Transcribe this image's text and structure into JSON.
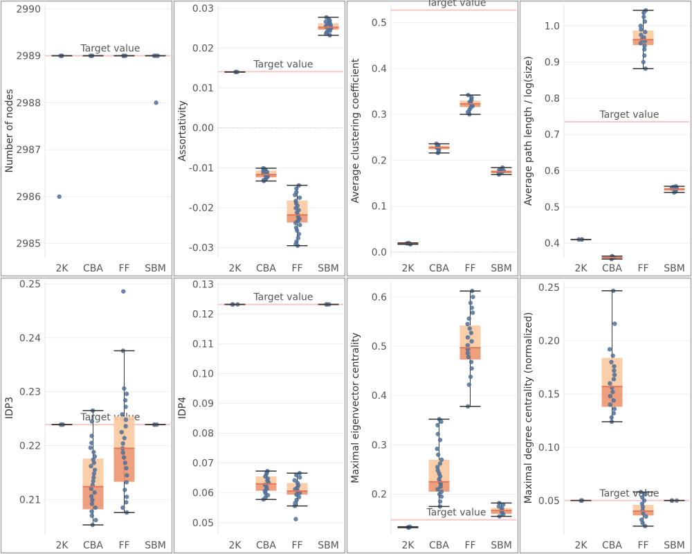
{
  "colors": {
    "point": "#4e6f96",
    "box_upper": "#f9c9a0",
    "box_lower": "#eb8f67",
    "median": "#e0775a",
    "whisker": "#333333",
    "target_line": "#f7c7c7",
    "grid": "#eeeeee",
    "frame": "#9a9a9a"
  },
  "chart_data": [
    {
      "type": "box",
      "ylabel": "Number of nodes",
      "categories": [
        "2K",
        "CBA",
        "FF",
        "SBM"
      ],
      "ylim": [
        2984.7,
        2990.1
      ],
      "yticks": [
        "2985",
        "2986",
        "2987",
        "2988",
        "2989",
        "2990"
      ],
      "target": {
        "label": "Target value",
        "value": 2989
      },
      "boxes": [
        {
          "category": "2K",
          "min": 2989,
          "q1": 2989,
          "median": 2989,
          "q3": 2989,
          "max": 2989,
          "points": [
            2989,
            2989,
            2989,
            2986
          ]
        },
        {
          "category": "CBA",
          "min": 2989,
          "q1": 2989,
          "median": 2989,
          "q3": 2989,
          "max": 2989,
          "points": [
            2989,
            2989,
            2989
          ]
        },
        {
          "category": "FF",
          "min": 2989,
          "q1": 2989,
          "median": 2989,
          "q3": 2989,
          "max": 2989,
          "points": [
            2989,
            2989,
            2989
          ]
        },
        {
          "category": "SBM",
          "min": 2989,
          "q1": 2989,
          "median": 2989,
          "q3": 2989,
          "max": 2989,
          "points": [
            2989,
            2989,
            2989,
            2988
          ]
        }
      ]
    },
    {
      "type": "box",
      "ylabel": "Assortativity",
      "categories": [
        "2K",
        "CBA",
        "FF",
        "SBM"
      ],
      "ylim": [
        -0.0325,
        0.031
      ],
      "yticks": [
        "-0.03",
        "-0.02",
        "-0.01",
        "0.00",
        "0.01",
        "0.02",
        "0.03"
      ],
      "zero_line": 0,
      "target": {
        "label": "Target value",
        "value": 0.0141
      },
      "boxes": [
        {
          "category": "2K",
          "min": 0.014,
          "q1": 0.014,
          "median": 0.014,
          "q3": 0.014,
          "max": 0.014,
          "points": [
            0.014,
            0.014,
            0.014
          ]
        },
        {
          "category": "CBA",
          "min": -0.0133,
          "q1": -0.0124,
          "median": -0.0117,
          "q3": -0.0107,
          "max": -0.0101,
          "points": [
            -0.0101,
            -0.0104,
            -0.0107,
            -0.011,
            -0.0113,
            -0.0116,
            -0.0119,
            -0.0122,
            -0.0125,
            -0.0128,
            -0.0131,
            -0.0133
          ]
        },
        {
          "category": "FF",
          "min": -0.0295,
          "q1": -0.0237,
          "median": -0.0218,
          "q3": -0.0182,
          "max": -0.0144,
          "points": [
            -0.0144,
            -0.0152,
            -0.0161,
            -0.0168,
            -0.0175,
            -0.0183,
            -0.0189,
            -0.0195,
            -0.0201,
            -0.0206,
            -0.0212,
            -0.0218,
            -0.0223,
            -0.0228,
            -0.0233,
            -0.0238,
            -0.0243,
            -0.025,
            -0.0257,
            -0.0266,
            -0.0276,
            -0.0285,
            -0.0291,
            -0.0295
          ]
        },
        {
          "category": "SBM",
          "min": 0.0232,
          "q1": 0.0246,
          "median": 0.0252,
          "q3": 0.0262,
          "max": 0.0277,
          "points": [
            0.0232,
            0.0236,
            0.024,
            0.0243,
            0.0246,
            0.0249,
            0.0252,
            0.0254,
            0.0257,
            0.026,
            0.0263,
            0.0266,
            0.0269,
            0.0273,
            0.0277
          ]
        }
      ]
    },
    {
      "type": "box",
      "ylabel": "Average clustering coefficient",
      "categories": [
        "2K",
        "CBA",
        "FF",
        "SBM"
      ],
      "ylim": [
        -0.012,
        0.54
      ],
      "yticks": [
        "0.0",
        "0.1",
        "0.2",
        "0.3",
        "0.4",
        "0.5"
      ],
      "zero_line": 0,
      "target": {
        "label": "Target value",
        "value": 0.527
      },
      "boxes": [
        {
          "category": "2K",
          "min": 0.017,
          "q1": 0.018,
          "median": 0.0185,
          "q3": 0.019,
          "max": 0.02,
          "points": [
            0.017,
            0.018,
            0.019,
            0.02
          ]
        },
        {
          "category": "CBA",
          "min": 0.216,
          "q1": 0.224,
          "median": 0.228,
          "q3": 0.232,
          "max": 0.236,
          "points": [
            0.216,
            0.22,
            0.224,
            0.227,
            0.229,
            0.231,
            0.233,
            0.236
          ]
        },
        {
          "category": "FF",
          "min": 0.3,
          "q1": 0.316,
          "median": 0.323,
          "q3": 0.33,
          "max": 0.342,
          "points": [
            0.3,
            0.305,
            0.31,
            0.314,
            0.318,
            0.321,
            0.324,
            0.327,
            0.33,
            0.333,
            0.337,
            0.342
          ]
        },
        {
          "category": "SBM",
          "min": 0.169,
          "q1": 0.172,
          "median": 0.175,
          "q3": 0.179,
          "max": 0.184,
          "points": [
            0.169,
            0.171,
            0.173,
            0.175,
            0.177,
            0.179,
            0.181,
            0.184
          ]
        }
      ]
    },
    {
      "type": "box",
      "ylabel": "Average path length / log(size)",
      "categories": [
        "2K",
        "CBA",
        "FF",
        "SBM"
      ],
      "ylim": [
        0.36,
        1.06
      ],
      "yticks": [
        "0.4",
        "0.5",
        "0.6",
        "0.7",
        "0.8",
        "0.9",
        "1.0"
      ],
      "target": {
        "label": "Target value",
        "value": 0.735
      },
      "boxes": [
        {
          "category": "2K",
          "min": 0.41,
          "q1": 0.41,
          "median": 0.41,
          "q3": 0.41,
          "max": 0.41,
          "points": [
            0.41,
            0.41,
            0.41
          ]
        },
        {
          "category": "CBA",
          "min": 0.356,
          "q1": 0.358,
          "median": 0.36,
          "q3": 0.362,
          "max": 0.364,
          "points": [
            0.356,
            0.358,
            0.36,
            0.362,
            0.364
          ]
        },
        {
          "category": "FF",
          "min": 0.882,
          "q1": 0.947,
          "median": 0.962,
          "q3": 0.987,
          "max": 1.043,
          "points": [
            0.882,
            0.9,
            0.918,
            0.935,
            0.945,
            0.952,
            0.958,
            0.963,
            0.968,
            0.975,
            0.983,
            0.99,
            1.0,
            1.012,
            1.025,
            1.036,
            1.043
          ]
        },
        {
          "category": "SBM",
          "min": 0.54,
          "q1": 0.545,
          "median": 0.549,
          "q3": 0.553,
          "max": 0.557,
          "points": [
            0.54,
            0.543,
            0.546,
            0.549,
            0.551,
            0.553,
            0.555,
            0.557
          ]
        }
      ]
    },
    {
      "type": "box",
      "ylabel": "IDP3",
      "categories": [
        "2K",
        "CBA",
        "FF",
        "SBM"
      ],
      "ylim": [
        0.2035,
        0.2505
      ],
      "yticks": [
        "0.21",
        "0.22",
        "0.23",
        "0.24",
        "0.25"
      ],
      "target": {
        "label": "Target value",
        "value": 0.2239
      },
      "boxes": [
        {
          "category": "2K",
          "min": 0.2239,
          "q1": 0.2239,
          "median": 0.2239,
          "q3": 0.2239,
          "max": 0.2239,
          "points": [
            0.2239,
            0.2239,
            0.2239
          ]
        },
        {
          "category": "CBA",
          "min": 0.2053,
          "q1": 0.2082,
          "median": 0.2124,
          "q3": 0.2176,
          "max": 0.2265,
          "points": [
            0.2053,
            0.2062,
            0.207,
            0.2078,
            0.2085,
            0.2092,
            0.2099,
            0.2106,
            0.2113,
            0.212,
            0.2127,
            0.2134,
            0.2141,
            0.2148,
            0.2155,
            0.2162,
            0.2168,
            0.2174,
            0.218,
            0.2188,
            0.2196,
            0.2205,
            0.2218,
            0.2245,
            0.2265
          ]
        },
        {
          "category": "FF",
          "min": 0.2076,
          "q1": 0.2133,
          "median": 0.2195,
          "q3": 0.2254,
          "max": 0.2376,
          "points": [
            0.2076,
            0.2085,
            0.2095,
            0.2105,
            0.2118,
            0.2132,
            0.2145,
            0.2158,
            0.2168,
            0.2178,
            0.2187,
            0.2195,
            0.2204,
            0.2214,
            0.2225,
            0.2236,
            0.2248,
            0.2258,
            0.2272,
            0.2284,
            0.2296,
            0.2306,
            0.2376,
            0.2486
          ]
        },
        {
          "category": "SBM",
          "min": 0.2239,
          "q1": 0.2239,
          "median": 0.2239,
          "q3": 0.2239,
          "max": 0.2239,
          "points": [
            0.2239,
            0.2239,
            0.2239
          ]
        }
      ]
    },
    {
      "type": "box",
      "ylabel": "IDP4",
      "categories": [
        "2K",
        "CBA",
        "FF",
        "SBM"
      ],
      "ylim": [
        0.046,
        0.131
      ],
      "yticks": [
        "0.05",
        "0.06",
        "0.07",
        "0.08",
        "0.09",
        "0.10",
        "0.11",
        "0.12",
        "0.13"
      ],
      "target": {
        "label": "Target value",
        "value": 0.1232
      },
      "boxes": [
        {
          "category": "2K",
          "min": 0.1232,
          "q1": 0.1232,
          "median": 0.1232,
          "q3": 0.1232,
          "max": 0.1232,
          "points": [
            0.1232,
            0.1232,
            0.1232
          ]
        },
        {
          "category": "CBA",
          "min": 0.0578,
          "q1": 0.0607,
          "median": 0.063,
          "q3": 0.0655,
          "max": 0.0673,
          "points": [
            0.0578,
            0.0585,
            0.0592,
            0.0599,
            0.0606,
            0.0613,
            0.062,
            0.0627,
            0.0634,
            0.0641,
            0.0648,
            0.0655,
            0.0662,
            0.0668,
            0.0673
          ]
        },
        {
          "category": "FF",
          "min": 0.0556,
          "q1": 0.0594,
          "median": 0.0606,
          "q3": 0.0633,
          "max": 0.0666,
          "points": [
            0.0512,
            0.0556,
            0.0566,
            0.0576,
            0.0586,
            0.0594,
            0.06,
            0.0606,
            0.0612,
            0.0618,
            0.0625,
            0.0633,
            0.0642,
            0.0652,
            0.066,
            0.0666
          ]
        },
        {
          "category": "SBM",
          "min": 0.1232,
          "q1": 0.1232,
          "median": 0.1232,
          "q3": 0.1232,
          "max": 0.1232,
          "points": [
            0.1232,
            0.1232,
            0.1232
          ]
        }
      ]
    },
    {
      "type": "box",
      "ylabel": "Maximal eigenvector centrality",
      "categories": [
        "2K",
        "CBA",
        "FF",
        "SBM"
      ],
      "ylim": [
        0.118,
        0.632
      ],
      "yticks": [
        "0.2",
        "0.3",
        "0.4",
        "0.5",
        "0.6"
      ],
      "target": {
        "label": "Target value",
        "value": 0.148
      },
      "boxes": [
        {
          "category": "2K",
          "min": 0.132,
          "q1": 0.132,
          "median": 0.133,
          "q3": 0.133,
          "max": 0.134,
          "points": [
            0.132,
            0.133,
            0.134
          ]
        },
        {
          "category": "CBA",
          "min": 0.175,
          "q1": 0.205,
          "median": 0.225,
          "q3": 0.27,
          "max": 0.352,
          "points": [
            0.175,
            0.185,
            0.195,
            0.2,
            0.205,
            0.21,
            0.215,
            0.22,
            0.225,
            0.23,
            0.236,
            0.242,
            0.248,
            0.255,
            0.262,
            0.27,
            0.28,
            0.292,
            0.31,
            0.322,
            0.34,
            0.347,
            0.352
          ]
        },
        {
          "category": "FF",
          "min": 0.378,
          "q1": 0.473,
          "median": 0.497,
          "q3": 0.542,
          "max": 0.612,
          "points": [
            0.378,
            0.422,
            0.438,
            0.455,
            0.468,
            0.478,
            0.486,
            0.494,
            0.502,
            0.51,
            0.518,
            0.527,
            0.536,
            0.545,
            0.556,
            0.568,
            0.578,
            0.588,
            0.6,
            0.612
          ]
        },
        {
          "category": "SBM",
          "min": 0.155,
          "q1": 0.16,
          "median": 0.167,
          "q3": 0.172,
          "max": 0.182,
          "points": [
            0.155,
            0.159,
            0.163,
            0.167,
            0.171,
            0.175,
            0.179,
            0.182
          ]
        }
      ]
    },
    {
      "type": "box",
      "ylabel": "Maximal degree centrality (normalized)",
      "categories": [
        "2K",
        "CBA",
        "FF",
        "SBM"
      ],
      "ylim": [
        0.018,
        0.256
      ],
      "yticks": [
        "0.05",
        "0.10",
        "0.15",
        "0.20",
        "0.25"
      ],
      "target": {
        "label": "Target value",
        "value": 0.05
      },
      "boxes": [
        {
          "category": "2K",
          "min": 0.05,
          "q1": 0.05,
          "median": 0.05,
          "q3": 0.05,
          "max": 0.05,
          "points": [
            0.05,
            0.05,
            0.05
          ]
        },
        {
          "category": "CBA",
          "min": 0.124,
          "q1": 0.138,
          "median": 0.157,
          "q3": 0.184,
          "max": 0.247,
          "points": [
            0.124,
            0.128,
            0.132,
            0.136,
            0.14,
            0.144,
            0.148,
            0.152,
            0.156,
            0.16,
            0.164,
            0.168,
            0.172,
            0.176,
            0.18,
            0.186,
            0.192,
            0.216,
            0.247
          ]
        },
        {
          "category": "FF",
          "min": 0.026,
          "q1": 0.036,
          "median": 0.04,
          "q3": 0.046,
          "max": 0.058,
          "points": [
            0.026,
            0.029,
            0.032,
            0.035,
            0.038,
            0.041,
            0.044,
            0.047,
            0.05,
            0.053,
            0.056,
            0.058
          ]
        },
        {
          "category": "SBM",
          "min": 0.05,
          "q1": 0.05,
          "median": 0.05,
          "q3": 0.05,
          "max": 0.05,
          "points": [
            0.05,
            0.05,
            0.05
          ]
        }
      ]
    }
  ]
}
